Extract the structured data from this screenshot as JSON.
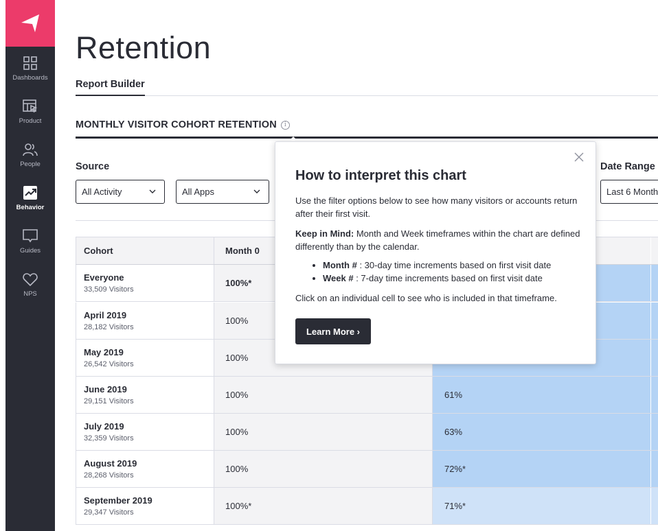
{
  "sidebar": {
    "items": [
      {
        "label": "Dashboards",
        "icon": "dashboards-icon"
      },
      {
        "label": "Product",
        "icon": "product-icon"
      },
      {
        "label": "People",
        "icon": "people-icon"
      },
      {
        "label": "Behavior",
        "icon": "behavior-icon",
        "active": true
      },
      {
        "label": "Guides",
        "icon": "guides-icon"
      },
      {
        "label": "NPS",
        "icon": "heart-icon"
      }
    ],
    "brand_color": "#ec3b6a",
    "bg_color": "#2a2c35"
  },
  "header": {
    "title": "Retention",
    "tab": "Report Builder"
  },
  "section": {
    "title": "MONTHLY VISITOR COHORT RETENTION"
  },
  "filters": {
    "source_label": "Source",
    "source_value": "All Activity",
    "apps_value": "All Apps",
    "date_range_label": "Date Range",
    "date_range_value": "Last 6 Month"
  },
  "table": {
    "headers": [
      "Cohort",
      "Month 0"
    ],
    "rows": [
      {
        "name": "Everyone",
        "visitors": "33,509 Visitors",
        "m0": "100%*",
        "m1": "",
        "m0_bold": true
      },
      {
        "name": "April 2019",
        "visitors": "28,182 Visitors",
        "m0": "100%",
        "m1": ""
      },
      {
        "name": "May 2019",
        "visitors": "26,542 Visitors",
        "m0": "100%",
        "m1": ""
      },
      {
        "name": "June 2019",
        "visitors": "29,151 Visitors",
        "m0": "100%",
        "m1": "61%"
      },
      {
        "name": "July 2019",
        "visitors": "32,359 Visitors",
        "m0": "100%",
        "m1": "63%"
      },
      {
        "name": "August 2019",
        "visitors": "28,268 Visitors",
        "m0": "100%",
        "m1": "72%*"
      },
      {
        "name": "September 2019",
        "visitors": "29,347 Visitors",
        "m0": "100%*",
        "m1": "71%*"
      }
    ],
    "heat_colors": [
      "#b4d3f5",
      "#b4d3f5",
      "#b4d3f5",
      "#b4d3f5",
      "#b4d3f5",
      "#b4d3f5",
      "#cfe2f8"
    ]
  },
  "popover": {
    "title": "How to interpret this chart",
    "intro": "Use the filter options below to see how many visitors or accounts return after their first visit.",
    "keep_label": "Keep in Mind:",
    "keep_text": " Month and Week timeframes within the chart are defined differently than by the calendar.",
    "bullets": [
      {
        "term": "Month #",
        "text": " : 30-day time increments based on first visit date"
      },
      {
        "term": "Week #",
        "text": " : 7-day time increments based on first visit date"
      }
    ],
    "outro": "Click on an individual cell to see who is included in that timeframe.",
    "button": "Learn More ›"
  }
}
